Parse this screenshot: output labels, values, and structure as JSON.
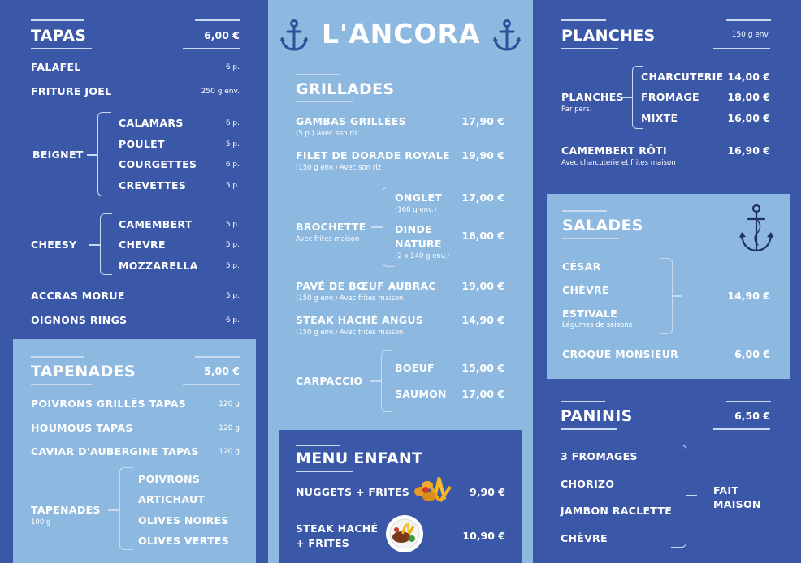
{
  "tapas": {
    "title": "TAPAS",
    "price": "6,00 €",
    "items": [
      {
        "name": "FALAFEL",
        "qty": "6 p."
      },
      {
        "name": "FRITURE JOEL",
        "qty": "250 g env."
      }
    ],
    "beignet": {
      "label": "BEIGNET",
      "items": [
        {
          "name": "CALAMARS",
          "qty": "6 p."
        },
        {
          "name": "POULET",
          "qty": "5 p."
        },
        {
          "name": "COURGETTES",
          "qty": "6 p."
        },
        {
          "name": "CREVETTES",
          "qty": "5 p."
        }
      ]
    },
    "cheesy": {
      "label": "CHEESY",
      "items": [
        {
          "name": "CAMEMBERT",
          "qty": "5 p."
        },
        {
          "name": "CHEVRE",
          "qty": "5 p."
        },
        {
          "name": "MOZZARELLA",
          "qty": "5 p."
        }
      ]
    },
    "extra": [
      {
        "name": "ACCRAS MORUE",
        "qty": "5 p."
      },
      {
        "name": "OIGNONS RINGS",
        "qty": "6 p."
      }
    ]
  },
  "tapenades": {
    "title": "TAPENADES",
    "price": "5,00 €",
    "items": [
      {
        "name": "POIVRONS GRILLÉS TAPAS",
        "qty": "120 g"
      },
      {
        "name": "HOUMOUS TAPAS",
        "qty": "120 g"
      },
      {
        "name": "CAVIAR D'AUBERGINE TAPAS",
        "qty": "120 g"
      }
    ],
    "group": {
      "label": "TAPENADES",
      "sub": "100 g",
      "items": [
        "POIVRONS",
        "ARTICHAUT",
        "OLIVES NOIRES",
        "OLIVES VERTES"
      ]
    }
  },
  "header": {
    "name": "L'ANCORA"
  },
  "grillades": {
    "title": "GRILLADES",
    "gambas": {
      "name": "GAMBAS GRILLÉES",
      "sub": "(5 p.) Avec son riz",
      "price": "17,90 €"
    },
    "dorade": {
      "name": "FILET DE DORADE ROYALE",
      "sub": "(150 g env.) Avec son riz",
      "price": "19,90 €"
    },
    "brochette": {
      "name": "BROCHETTE",
      "sub": "Avec frites maison",
      "onglet": {
        "name": "ONGLET",
        "sub": "(160 g env.)",
        "price": "17,00 €"
      },
      "dinde": {
        "name1": "DINDE",
        "name2": "NATURE",
        "sub": "(2 x 140 g env.)",
        "price": "16,00 €"
      }
    },
    "pave": {
      "name": "PAVÉ DE BŒUF AUBRAC",
      "sub": "(150 g env.) Avec frites maison",
      "price": "19,00 €"
    },
    "steak": {
      "name": "STEAK HACHÉ ANGUS",
      "sub": "(150 g env.) Avec frites maison",
      "price": "14,90 €"
    },
    "carpaccio": {
      "name": "CARPACCIO",
      "boeuf": {
        "name": "BOEUF",
        "price": "15,00 €"
      },
      "saumon": {
        "name": "SAUMON",
        "price": "17,00 €"
      }
    }
  },
  "enfant": {
    "title": "MENU ENFANT",
    "nuggets": {
      "name": "NUGGETS + FRITES",
      "price": "9,90 €"
    },
    "steak": {
      "line1": "STEAK HACHÉ",
      "line2": "+ FRITES",
      "price": "10,90 €"
    }
  },
  "planches": {
    "title": "PLANCHES",
    "qty": "150 g env.",
    "group": {
      "label": "PLANCHES",
      "sub": "Par pers.",
      "items": [
        {
          "name": "CHARCUTERIE",
          "price": "14,00 €"
        },
        {
          "name": "FROMAGE",
          "price": "18,00 €"
        },
        {
          "name": "MIXTE",
          "price": "16,00 €"
        }
      ]
    },
    "camembert": {
      "name": "CAMEMBERT RÔTI",
      "sub": "Avec charcuterie et frites maison",
      "price": "16,90 €"
    }
  },
  "salades": {
    "title": "SALADES",
    "items": [
      {
        "name": "CÉSAR"
      },
      {
        "name": "CHÈVRE"
      },
      {
        "name": "ESTIVALE",
        "sub": "Légumes de saisons"
      }
    ],
    "price": "14,90 €",
    "croque": {
      "name": "CROQUE MONSIEUR",
      "price": "6,00 €"
    }
  },
  "paninis": {
    "title": "PANINIS",
    "price": "6,50 €",
    "items": [
      "3 FROMAGES",
      "CHORIZO",
      "JAMBON RACLETTE",
      "CHÈVRE"
    ],
    "label1": "FAIT",
    "label2": "MAISON"
  },
  "icons": {
    "anchor": "anchor-icon",
    "nuggets": "nuggets-fries-image",
    "steak": "steak-plate-image"
  }
}
